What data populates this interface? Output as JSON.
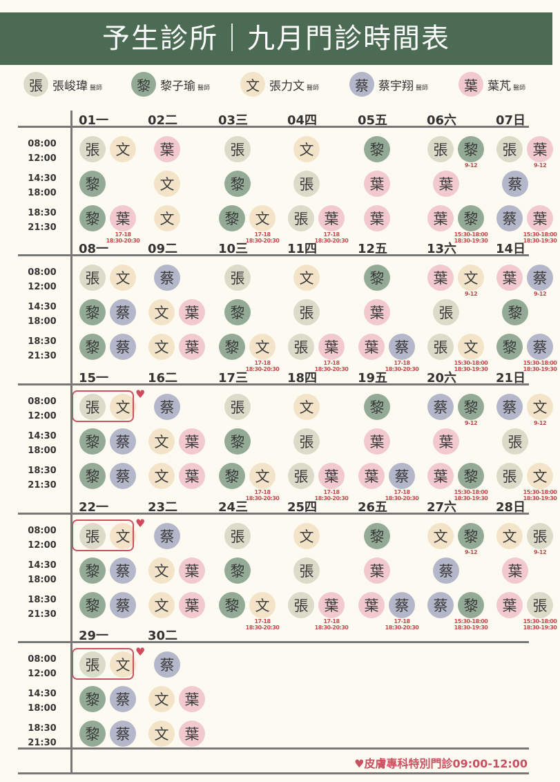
{
  "title": "予生診所｜九月門診時間表",
  "doctors": [
    {
      "char": "張",
      "name": "張峻瑋",
      "suffix": "醫師"
    },
    {
      "char": "黎",
      "name": "黎子瑜",
      "suffix": "醫師"
    },
    {
      "char": "文",
      "name": "張力文",
      "suffix": "醫師"
    },
    {
      "char": "蔡",
      "name": "蔡宇翔",
      "suffix": "醫師"
    },
    {
      "char": "葉",
      "name": "葉芃",
      "suffix": "醫師"
    }
  ],
  "colors": {
    "張": "#dcdac9",
    "黎": "#93ab96",
    "文": "#f3e4c9",
    "蔡": "#b4b6c9",
    "葉": "#f2c9cf",
    "header": "#4c6b54",
    "accent": "#c9505f"
  },
  "time_slots": [
    {
      "start": "08:00",
      "end": "12:00"
    },
    {
      "start": "14:30",
      "end": "18:00"
    },
    {
      "start": "18:30",
      "end": "21:30"
    }
  ],
  "weeks": [
    {
      "days": [
        {
          "label": "01一",
          "slots": [
            [
              "張",
              "文"
            ],
            [
              "黎"
            ],
            [
              "黎",
              "葉:17-18|18:30-20:30"
            ]
          ]
        },
        {
          "label": "02二",
          "slots": [
            [
              "葉"
            ],
            [
              "文"
            ],
            [
              "文"
            ]
          ]
        },
        {
          "label": "03三",
          "slots": [
            [
              "張"
            ],
            [
              "黎"
            ],
            [
              "黎",
              "文:17-18|18:30-20:30"
            ]
          ]
        },
        {
          "label": "04四",
          "slots": [
            [
              "文"
            ],
            [
              "張"
            ],
            [
              "張",
              "葉:17-18|18:30-20:30"
            ]
          ]
        },
        {
          "label": "05五",
          "slots": [
            [
              "黎"
            ],
            [
              "葉"
            ],
            [
              "葉"
            ]
          ]
        },
        {
          "label": "06六",
          "slots": [
            [
              "張",
              "黎:9-12"
            ],
            [
              "葉"
            ],
            [
              "葉",
              "黎:15:30-18:00|18:30-19:30"
            ]
          ]
        },
        {
          "label": "07日",
          "slots": [
            [
              "張",
              "葉:9-12"
            ],
            [
              "蔡"
            ],
            [
              "蔡",
              "葉:15:30-18:00|18:30-19:30"
            ]
          ]
        }
      ]
    },
    {
      "days": [
        {
          "label": "08一",
          "slots": [
            [
              "張",
              "文"
            ],
            [
              "黎",
              "蔡"
            ],
            [
              "黎",
              "蔡"
            ]
          ]
        },
        {
          "label": "09二",
          "slots": [
            [
              "蔡"
            ],
            [
              "文",
              "葉"
            ],
            [
              "文",
              "葉"
            ]
          ]
        },
        {
          "label": "10三",
          "slots": [
            [
              "張"
            ],
            [
              "黎"
            ],
            [
              "黎",
              "文:17-18|18:30-20:30"
            ]
          ]
        },
        {
          "label": "11四",
          "slots": [
            [
              "文"
            ],
            [
              "張"
            ],
            [
              "張",
              "葉:17-18|18:30-20:30"
            ]
          ]
        },
        {
          "label": "12五",
          "slots": [
            [
              "黎"
            ],
            [
              "葉"
            ],
            [
              "葉",
              "蔡:17-18|18:30-20:30"
            ]
          ]
        },
        {
          "label": "13六",
          "slots": [
            [
              "葉",
              "文:9-12"
            ],
            [
              "張"
            ],
            [
              "張",
              "文:15:30-18:00|18:30-19:30"
            ]
          ]
        },
        {
          "label": "14日",
          "slots": [
            [
              "葉",
              "蔡:9-12"
            ],
            [
              "黎"
            ],
            [
              "黎",
              "蔡:15:30-18:00|18:30-19:30"
            ]
          ]
        }
      ]
    },
    {
      "days": [
        {
          "label": "15一",
          "slots": [
            [
              "張",
              "文"
            ],
            [
              "黎",
              "蔡"
            ],
            [
              "黎",
              "蔡"
            ]
          ],
          "special": true
        },
        {
          "label": "16二",
          "slots": [
            [
              "蔡"
            ],
            [
              "文",
              "葉"
            ],
            [
              "文",
              "葉"
            ]
          ]
        },
        {
          "label": "17三",
          "slots": [
            [
              "張"
            ],
            [
              "黎"
            ],
            [
              "黎",
              "文:17-18|18:30-20:30"
            ]
          ]
        },
        {
          "label": "18四",
          "slots": [
            [
              "文"
            ],
            [
              "張"
            ],
            [
              "張",
              "葉:17-18|18:30-20:30"
            ]
          ]
        },
        {
          "label": "19五",
          "slots": [
            [
              "黎"
            ],
            [
              "葉"
            ],
            [
              "葉",
              "蔡:17-18|18:30-20:30"
            ]
          ]
        },
        {
          "label": "20六",
          "slots": [
            [
              "蔡",
              "黎:9-12"
            ],
            [
              "葉"
            ],
            [
              "葉",
              "黎:15:30-18:00|18:30-19:30"
            ]
          ]
        },
        {
          "label": "21日",
          "slots": [
            [
              "蔡",
              "文:9-12"
            ],
            [
              "張"
            ],
            [
              "張",
              "文:15:30-18:00|18:30-19:30"
            ]
          ]
        }
      ]
    },
    {
      "days": [
        {
          "label": "22一",
          "slots": [
            [
              "張",
              "文"
            ],
            [
              "黎",
              "蔡"
            ],
            [
              "黎",
              "蔡"
            ]
          ],
          "special": true
        },
        {
          "label": "23二",
          "slots": [
            [
              "蔡"
            ],
            [
              "文",
              "葉"
            ],
            [
              "文",
              "葉"
            ]
          ]
        },
        {
          "label": "24三",
          "slots": [
            [
              "張"
            ],
            [
              "黎"
            ],
            [
              "黎",
              "文:17-18|18:30-20:30"
            ]
          ]
        },
        {
          "label": "25四",
          "slots": [
            [
              "文"
            ],
            [
              "張"
            ],
            [
              "張",
              "葉:17-18|18:30-20:30"
            ]
          ]
        },
        {
          "label": "26五",
          "slots": [
            [
              "黎"
            ],
            [
              "葉"
            ],
            [
              "葉",
              "蔡:17-18|18:30-20:30"
            ]
          ]
        },
        {
          "label": "27六",
          "slots": [
            [
              "文",
              "黎:9-12"
            ],
            [
              "蔡"
            ],
            [
              "蔡",
              "黎:15:30-18:00|18:30-19:30"
            ]
          ]
        },
        {
          "label": "28日",
          "slots": [
            [
              "文",
              "張:9-12"
            ],
            [
              "葉"
            ],
            [
              "葉",
              "張:15:30-18:00|18:30-19:30"
            ]
          ]
        }
      ]
    },
    {
      "days": [
        {
          "label": "29一",
          "slots": [
            [
              "張",
              "文"
            ],
            [
              "黎",
              "蔡"
            ],
            [
              "黎",
              "蔡"
            ]
          ],
          "special": true
        },
        {
          "label": "30二",
          "slots": [
            [
              "蔡"
            ],
            [
              "文",
              "葉"
            ],
            [
              "文",
              "葉"
            ]
          ]
        }
      ]
    }
  ],
  "footnote": "皮膚專科特別門診09:00-12:00"
}
